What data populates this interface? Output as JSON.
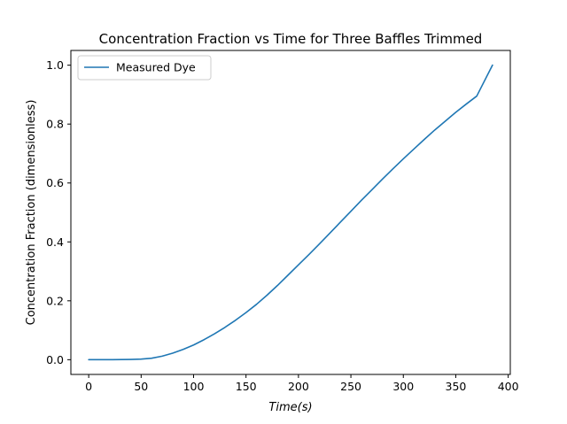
{
  "chart_data": {
    "type": "line",
    "title": "Concentration Fraction vs Time for Three Baffles Trimmed",
    "xlabel": "Time(s)",
    "ylabel": "Concentration Fraction (dimensionless)",
    "xlim": [
      -17,
      402
    ],
    "ylim": [
      -0.05,
      1.05
    ],
    "x_ticks": [
      0,
      50,
      100,
      150,
      200,
      250,
      300,
      350,
      400
    ],
    "y_ticks": [
      0.0,
      0.2,
      0.4,
      0.6,
      0.8,
      1.0
    ],
    "x_tick_labels": [
      "0",
      "50",
      "100",
      "150",
      "200",
      "250",
      "300",
      "350",
      "400"
    ],
    "y_tick_labels": [
      "0.0",
      "0.2",
      "0.4",
      "0.6",
      "0.8",
      "1.0"
    ],
    "grid": false,
    "legend": {
      "placement": "top-left",
      "entries": [
        "Measured Dye"
      ]
    },
    "series": [
      {
        "name": "Measured Dye",
        "color": "#1f77b4",
        "x": [
          0,
          20,
          40,
          50,
          60,
          70,
          80,
          90,
          100,
          110,
          120,
          130,
          140,
          150,
          160,
          170,
          180,
          190,
          200,
          210,
          220,
          230,
          240,
          250,
          260,
          270,
          280,
          290,
          300,
          310,
          320,
          330,
          340,
          350,
          360,
          370,
          385
        ],
        "y": [
          0.0,
          0.0,
          0.001,
          0.002,
          0.005,
          0.012,
          0.022,
          0.035,
          0.05,
          0.068,
          0.088,
          0.11,
          0.134,
          0.16,
          0.188,
          0.219,
          0.252,
          0.287,
          0.322,
          0.357,
          0.393,
          0.43,
          0.467,
          0.504,
          0.541,
          0.577,
          0.613,
          0.648,
          0.682,
          0.715,
          0.748,
          0.78,
          0.81,
          0.84,
          0.868,
          0.895,
          1.0
        ]
      }
    ]
  }
}
